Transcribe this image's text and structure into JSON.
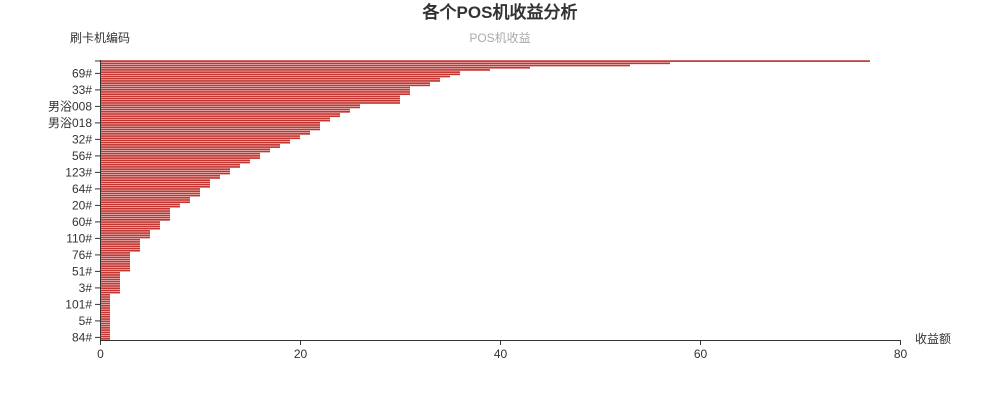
{
  "colors": {
    "bar": "#c23531",
    "bar_stroke": "#c23531",
    "axis": "#333333",
    "text": "#333333",
    "legend_text": "#aaaaaa"
  },
  "chart_data": {
    "type": "bar",
    "orientation": "horizontal",
    "title": "各个POS机收益分析",
    "legend": [
      "POS机收益"
    ],
    "legend_placement": "top-center",
    "xlabel": "收益额",
    "ylabel": "刷卡机编码",
    "xlim": [
      0,
      80
    ],
    "x_ticks": [
      "0",
      "20",
      "40",
      "60",
      "80"
    ],
    "y_tick_labels": [
      "84#",
      "5#",
      "101#",
      "3#",
      "51#",
      "76#",
      "110#",
      "60#",
      "20#",
      "64#",
      "123#",
      "56#",
      "32#",
      "男浴018",
      "男浴008",
      "33#",
      "69#"
    ],
    "grid": false,
    "series": [
      {
        "name": "POS机收益",
        "values": [
          1,
          1,
          1,
          1,
          1,
          1,
          1,
          1,
          1,
          1,
          1,
          1,
          1,
          1,
          1,
          1,
          1,
          1,
          1,
          1,
          1,
          2,
          2,
          2,
          2,
          2,
          2,
          2,
          2,
          2,
          2,
          3,
          3,
          3,
          3,
          3,
          3,
          3,
          3,
          3,
          4,
          4,
          4,
          4,
          4,
          4,
          5,
          5,
          5,
          5,
          6,
          6,
          6,
          6,
          7,
          7,
          7,
          7,
          7,
          7,
          8,
          8,
          9,
          9,
          9,
          10,
          10,
          10,
          10,
          11,
          11,
          11,
          11,
          12,
          12,
          13,
          13,
          13,
          14,
          14,
          15,
          15,
          16,
          16,
          16,
          17,
          17,
          18,
          18,
          19,
          19,
          20,
          20,
          21,
          21,
          22,
          22,
          22,
          22,
          23,
          23,
          24,
          24,
          25,
          25,
          26,
          26,
          30,
          30,
          30,
          30,
          31,
          31,
          31,
          31,
          33,
          33,
          34,
          34,
          35,
          36,
          36,
          39,
          43,
          53,
          57,
          77
        ]
      }
    ]
  }
}
